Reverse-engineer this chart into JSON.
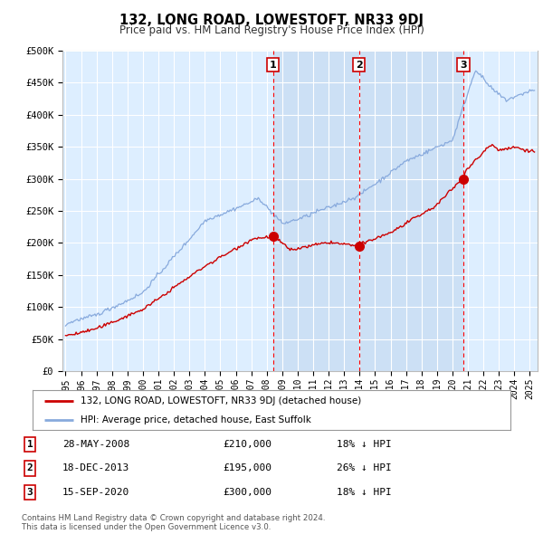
{
  "title": "132, LONG ROAD, LOWESTOFT, NR33 9DJ",
  "subtitle": "Price paid vs. HM Land Registry's House Price Index (HPI)",
  "ylabel_ticks": [
    "£0",
    "£50K",
    "£100K",
    "£150K",
    "£200K",
    "£250K",
    "£300K",
    "£350K",
    "£400K",
    "£450K",
    "£500K"
  ],
  "ytick_values": [
    0,
    50000,
    100000,
    150000,
    200000,
    250000,
    300000,
    350000,
    400000,
    450000,
    500000
  ],
  "ylim": [
    0,
    500000
  ],
  "xlim_start": 1994.8,
  "xlim_end": 2025.5,
  "bg_color": "#ddeeff",
  "fig_bg_color": "#ffffff",
  "red_color": "#cc0000",
  "blue_color": "#88aadd",
  "shade_color": "#cce0f5",
  "sale_dates": [
    2008.41,
    2013.96,
    2020.71
  ],
  "sale_prices": [
    210000,
    195000,
    300000
  ],
  "sale_labels": [
    "1",
    "2",
    "3"
  ],
  "legend_label_red": "132, LONG ROAD, LOWESTOFT, NR33 9DJ (detached house)",
  "legend_label_blue": "HPI: Average price, detached house, East Suffolk",
  "table_rows": [
    {
      "num": "1",
      "date": "28-MAY-2008",
      "price": "£210,000",
      "hpi": "18% ↓ HPI"
    },
    {
      "num": "2",
      "date": "18-DEC-2013",
      "price": "£195,000",
      "hpi": "26% ↓ HPI"
    },
    {
      "num": "3",
      "date": "15-SEP-2020",
      "price": "£300,000",
      "hpi": "18% ↓ HPI"
    }
  ],
  "footnote1": "Contains HM Land Registry data © Crown copyright and database right 2024.",
  "footnote2": "This data is licensed under the Open Government Licence v3.0.",
  "xticklabels": [
    "1995",
    "1996",
    "1997",
    "1998",
    "1999",
    "2000",
    "2001",
    "2002",
    "2003",
    "2004",
    "2005",
    "2006",
    "2007",
    "2008",
    "2009",
    "2010",
    "2011",
    "2012",
    "2013",
    "2014",
    "2015",
    "2016",
    "2017",
    "2018",
    "2019",
    "2020",
    "2021",
    "2022",
    "2023",
    "2024",
    "2025"
  ]
}
